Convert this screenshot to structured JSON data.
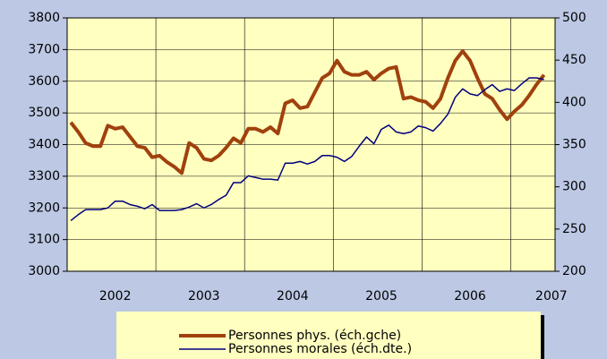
{
  "chart_data": {
    "type": "line",
    "categories": [
      null,
      null,
      null,
      null,
      null,
      null,
      "2002",
      null,
      null,
      null,
      null,
      null,
      null,
      null,
      null,
      null,
      null,
      null,
      "2003",
      null,
      null,
      null,
      null,
      null,
      null,
      null,
      null,
      null,
      null,
      null,
      "2004",
      null,
      null,
      null,
      null,
      null,
      null,
      null,
      null,
      null,
      null,
      null,
      "2005",
      null,
      null,
      null,
      null,
      null,
      null,
      null,
      null,
      null,
      null,
      null,
      "2006",
      null,
      null,
      null,
      null,
      null,
      null,
      null,
      null,
      null,
      null,
      "2007"
    ],
    "series": [
      {
        "name": "Personnes phys. (éch.gche)",
        "color": "#a0410d",
        "axis": "y",
        "values": [
          3470,
          3440,
          3405,
          3395,
          3395,
          3460,
          3450,
          3455,
          3425,
          3395,
          3390,
          3360,
          3365,
          3345,
          3330,
          3310,
          3405,
          3390,
          3355,
          3350,
          3365,
          3390,
          3420,
          3405,
          3450,
          3450,
          3440,
          3455,
          3435,
          3530,
          3540,
          3515,
          3520,
          3565,
          3610,
          3625,
          3665,
          3630,
          3620,
          3620,
          3630,
          3605,
          3625,
          3640,
          3645,
          3545,
          3550,
          3540,
          3535,
          3515,
          3545,
          3610,
          3665,
          3695,
          3665,
          3610,
          3560,
          3545,
          3510,
          3480,
          3505,
          3525,
          3555,
          3590,
          3620,
          null
        ]
      },
      {
        "name": "Personnes morales (éch.dte.)",
        "color": "#000080",
        "axis": "y2",
        "values": [
          260,
          267,
          273,
          273,
          273,
          275,
          283,
          283,
          279,
          277,
          274,
          279,
          272,
          272,
          272,
          273,
          276,
          280,
          275,
          279,
          285,
          290,
          305,
          305,
          313,
          311,
          309,
          309,
          308,
          328,
          328,
          330,
          327,
          330,
          337,
          337,
          335,
          330,
          336,
          348,
          359,
          351,
          368,
          373,
          365,
          363,
          365,
          372,
          370,
          366,
          375,
          386,
          406,
          416,
          410,
          408,
          415,
          421,
          413,
          416,
          414,
          422,
          429,
          429,
          427,
          null
        ]
      }
    ],
    "ylim": [
      3000,
      3800
    ],
    "yticks": [
      3000,
      3100,
      3200,
      3300,
      3400,
      3500,
      3600,
      3700,
      3800
    ],
    "y2lim": [
      200,
      500
    ],
    "y2ticks": [
      200,
      250,
      300,
      350,
      400,
      450,
      500
    ],
    "grid": true
  }
}
